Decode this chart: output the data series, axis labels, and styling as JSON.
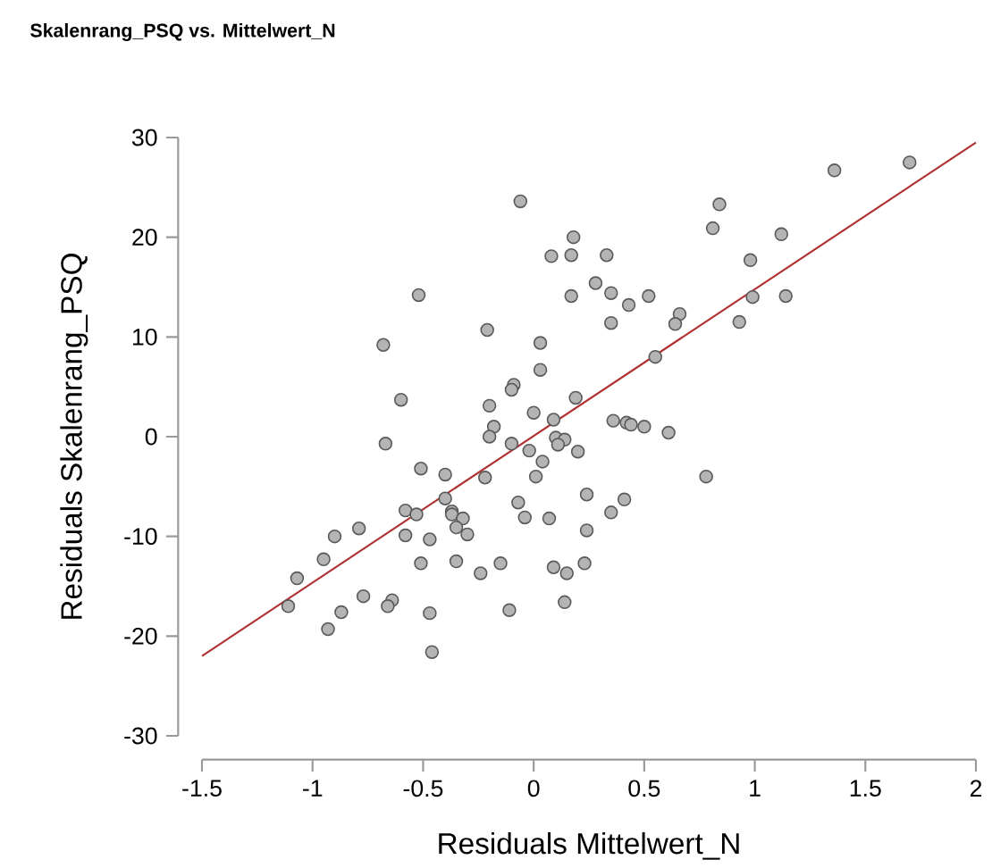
{
  "chart_data": {
    "type": "scatter",
    "title": "Skalenrang_PSQ vs. Mittelwert_N",
    "xlabel": "Residuals Mittelwert_N",
    "ylabel": "Residuals Skalenrang_PSQ",
    "xlim": [
      -1.5,
      2
    ],
    "ylim": [
      -30,
      30
    ],
    "xticks": [
      -1.5,
      -1,
      -0.5,
      0,
      0.5,
      1,
      1.5,
      2
    ],
    "yticks": [
      -30,
      -20,
      -10,
      0,
      10,
      20,
      30
    ],
    "series": [
      {
        "type": "scatter",
        "marker": "circle",
        "color": "#b4b4b4",
        "x": [
          -0.06,
          0.18,
          0.08,
          0.17,
          0.17,
          -0.52,
          -0.21,
          -0.68,
          0.03,
          0.03,
          -0.09,
          -0.1,
          -0.6,
          -0.2,
          0.0,
          0.19,
          0.09,
          -0.18,
          -0.2,
          -0.67,
          -0.1,
          -0.02,
          0.1,
          0.14,
          0.11,
          0.2,
          0.04,
          -0.51,
          -0.4,
          -0.22,
          0.01,
          -0.4,
          -0.58,
          -0.53,
          -0.37,
          -0.37,
          -0.32,
          -0.35,
          -0.3,
          -0.58,
          -0.47,
          -0.07,
          -0.04,
          0.07,
          0.24,
          0.24,
          0.23,
          -0.9,
          -0.79,
          -0.95,
          -1.07,
          -1.11,
          -0.93,
          -0.87,
          -0.77,
          -0.64,
          -0.66,
          -0.51,
          -0.35,
          -0.24,
          -0.15,
          -0.47,
          -0.46,
          -0.11,
          0.09,
          0.15,
          0.14,
          0.35,
          0.41,
          0.78,
          0.36,
          0.42,
          0.44,
          0.5,
          0.61,
          0.33,
          0.28,
          0.35,
          0.43,
          0.52,
          0.35,
          0.66,
          0.64,
          0.55,
          0.84,
          0.81,
          0.98,
          1.12,
          0.99,
          1.14,
          0.93,
          1.36,
          1.7
        ],
        "values": [
          23.6,
          20.0,
          18.1,
          18.2,
          14.1,
          14.2,
          10.7,
          9.2,
          9.4,
          6.7,
          5.2,
          4.7,
          3.7,
          3.1,
          2.4,
          3.9,
          1.7,
          1.0,
          0.0,
          -0.7,
          -0.7,
          -1.4,
          -0.1,
          -0.3,
          -0.8,
          -1.5,
          -2.5,
          -3.2,
          -3.8,
          -4.1,
          -4.0,
          -6.2,
          -7.4,
          -7.8,
          -7.5,
          -7.8,
          -8.2,
          -9.1,
          -9.8,
          -9.9,
          -10.3,
          -6.6,
          -8.1,
          -8.2,
          -5.8,
          -9.4,
          -12.7,
          -10.0,
          -9.2,
          -12.3,
          -14.2,
          -17.0,
          -19.3,
          -17.6,
          -16.0,
          -16.4,
          -17.0,
          -12.7,
          -12.5,
          -13.7,
          -12.7,
          -17.7,
          -21.6,
          -17.4,
          -13.1,
          -13.7,
          -16.6,
          -7.6,
          -6.3,
          -4.0,
          1.6,
          1.4,
          1.2,
          1.0,
          0.4,
          18.2,
          15.4,
          14.4,
          13.2,
          14.1,
          11.4,
          12.3,
          11.3,
          8.0,
          23.3,
          20.9,
          17.7,
          20.3,
          14.0,
          14.1,
          11.5,
          26.7,
          27.5
        ]
      },
      {
        "type": "line",
        "color": "#b03030",
        "x": [
          -1.5,
          2
        ],
        "values": [
          -22,
          29.5
        ]
      }
    ]
  }
}
